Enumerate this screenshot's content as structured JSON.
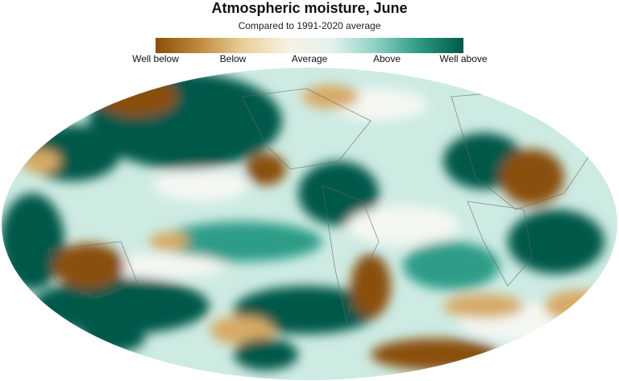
{
  "title": "Atmospheric moisture, June",
  "subtitle": "Compared to 1991-2020 average",
  "legend": {
    "labels": [
      "Well below",
      "Below",
      "Average",
      "Above",
      "Well above"
    ]
  }
}
